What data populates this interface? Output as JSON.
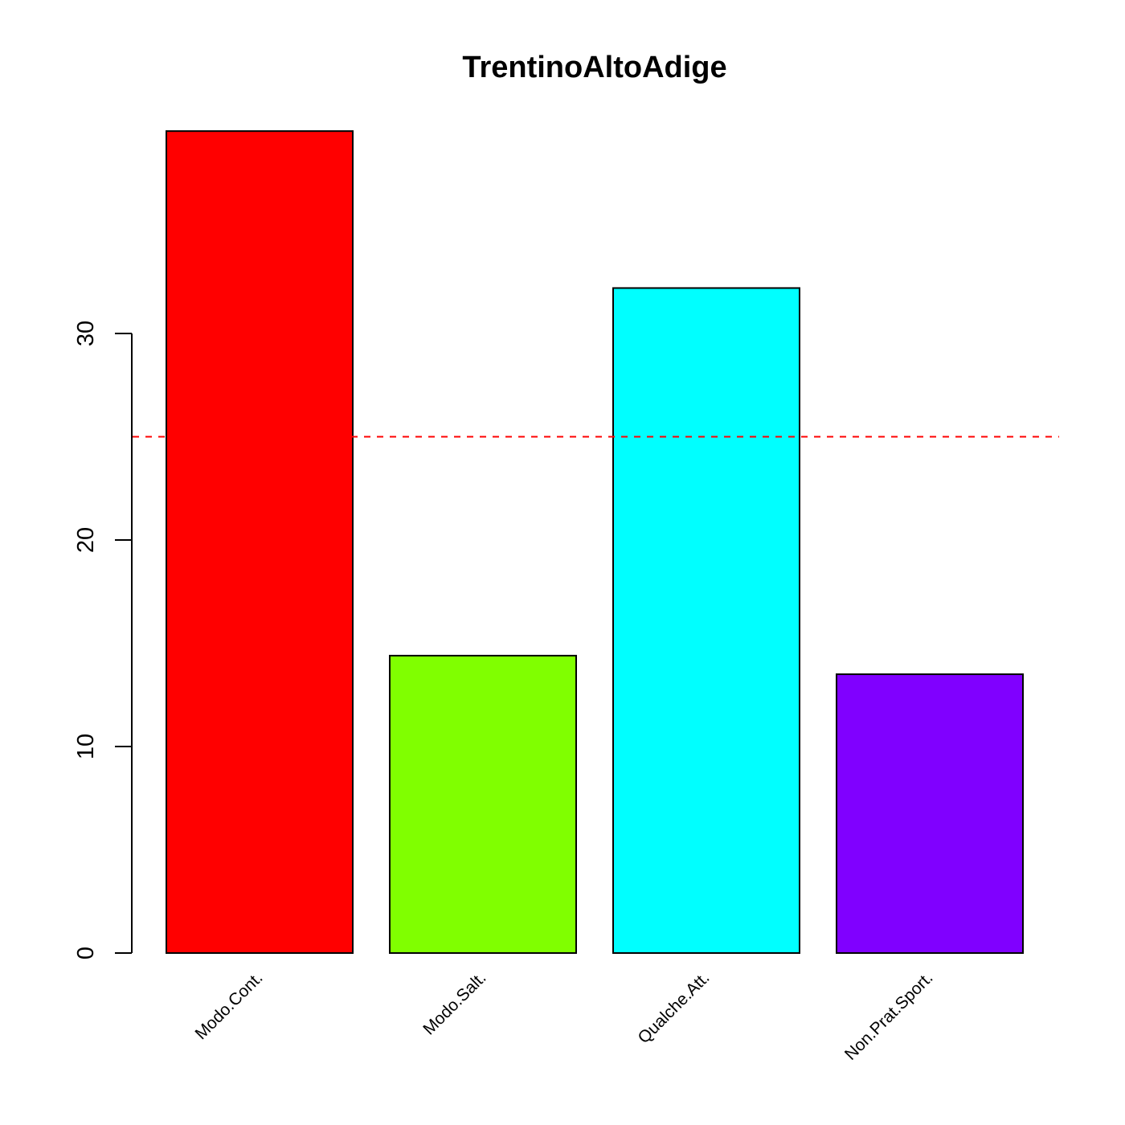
{
  "chart_data": {
    "type": "bar",
    "title": "TrentinoAltoAdige",
    "xlabel": "",
    "ylabel": "",
    "categories": [
      "Modo.Cont.",
      "Modo.Salt.",
      "Qualche.Att.",
      "Non.Prat.Sport."
    ],
    "values": [
      39.8,
      14.4,
      32.2,
      13.5
    ],
    "colors": [
      "#FF0000",
      "#80FF00",
      "#00FFFF",
      "#8000FF"
    ],
    "ylim": [
      0,
      39.8
    ],
    "yticks": [
      0,
      10,
      20,
      30
    ],
    "ytick_labels": [
      "0",
      "10",
      "20",
      "30"
    ],
    "reference_line": {
      "value": 25,
      "color": "#FF0000",
      "style": "dashed"
    },
    "grid": false,
    "legend": "none"
  }
}
